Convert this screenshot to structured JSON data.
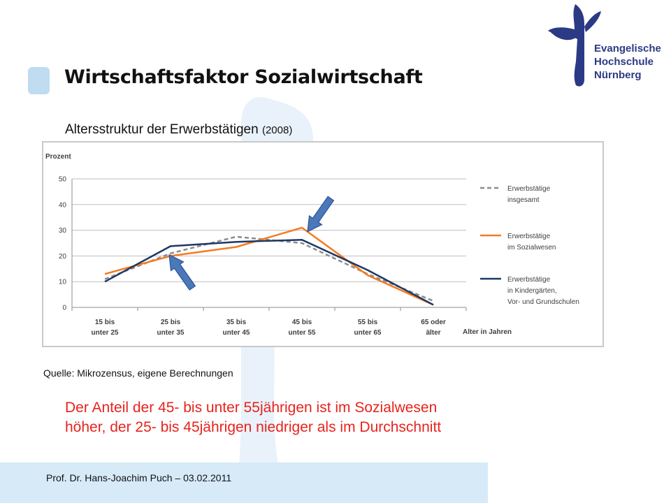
{
  "slide": {
    "title": "Wirtschaftsfaktor Sozialwirtschaft",
    "subtitle": "Altersstruktur der Erwerbstätigen",
    "subtitle_year": "(2008)",
    "source": "Quelle: Mikrozensus, eigene Berechnungen",
    "note_lines": [
      "Der Anteil der 45- bis unter 55jährigen ist im Sozialwesen",
      "höher, der 25- bis 45jährigen niedriger als im Durchschnitt"
    ],
    "footer": "Prof. Dr. Hans-Joachim Puch – 03.02.2011"
  },
  "logo": {
    "lines": [
      "Evangelische",
      "Hochschule",
      "Nürnberg"
    ],
    "color": "#2b3a85"
  },
  "colors": {
    "accent_light": "#bfdcf0",
    "note_red": "#e8231d",
    "arrow_fill": "#4a78b8"
  },
  "chart_data": {
    "type": "line",
    "ylabel": "Prozent",
    "xlabel": "Alter in Jahren",
    "ylim": [
      0,
      50
    ],
    "yticks": [
      0,
      10,
      20,
      30,
      40,
      50
    ],
    "grid": true,
    "legend_position": "right",
    "categories": [
      [
        "15 bis",
        "unter 25"
      ],
      [
        "25 bis",
        "unter 35"
      ],
      [
        "35 bis",
        "unter 45"
      ],
      [
        "45 bis",
        "unter 55"
      ],
      [
        "55 bis",
        "unter 65"
      ],
      [
        "65 oder",
        "älter"
      ]
    ],
    "series": [
      {
        "name_lines": [
          "Erwerbstätige",
          "insgesamt"
        ],
        "color": "#8c8c8c",
        "dashed": true,
        "values": [
          11,
          21,
          27.5,
          25,
          13,
          2.5
        ]
      },
      {
        "name_lines": [
          "Erwerbstätige",
          "im Sozialwesen"
        ],
        "color": "#f47b20",
        "dashed": false,
        "values": [
          13,
          20,
          23.5,
          31,
          12.5,
          1
        ]
      },
      {
        "name_lines": [
          "Erwerbstätige",
          "in Kindergärten,",
          "Vor- und Grundschulen"
        ],
        "color": "#1f3864",
        "dashed": false,
        "values": [
          10,
          23.8,
          25.5,
          26.3,
          14.5,
          1
        ]
      }
    ],
    "annotations": [
      {
        "type": "arrow",
        "target_category": 1,
        "target_value": 21
      },
      {
        "type": "arrow",
        "target_category": 3,
        "target_value": 30
      }
    ]
  }
}
